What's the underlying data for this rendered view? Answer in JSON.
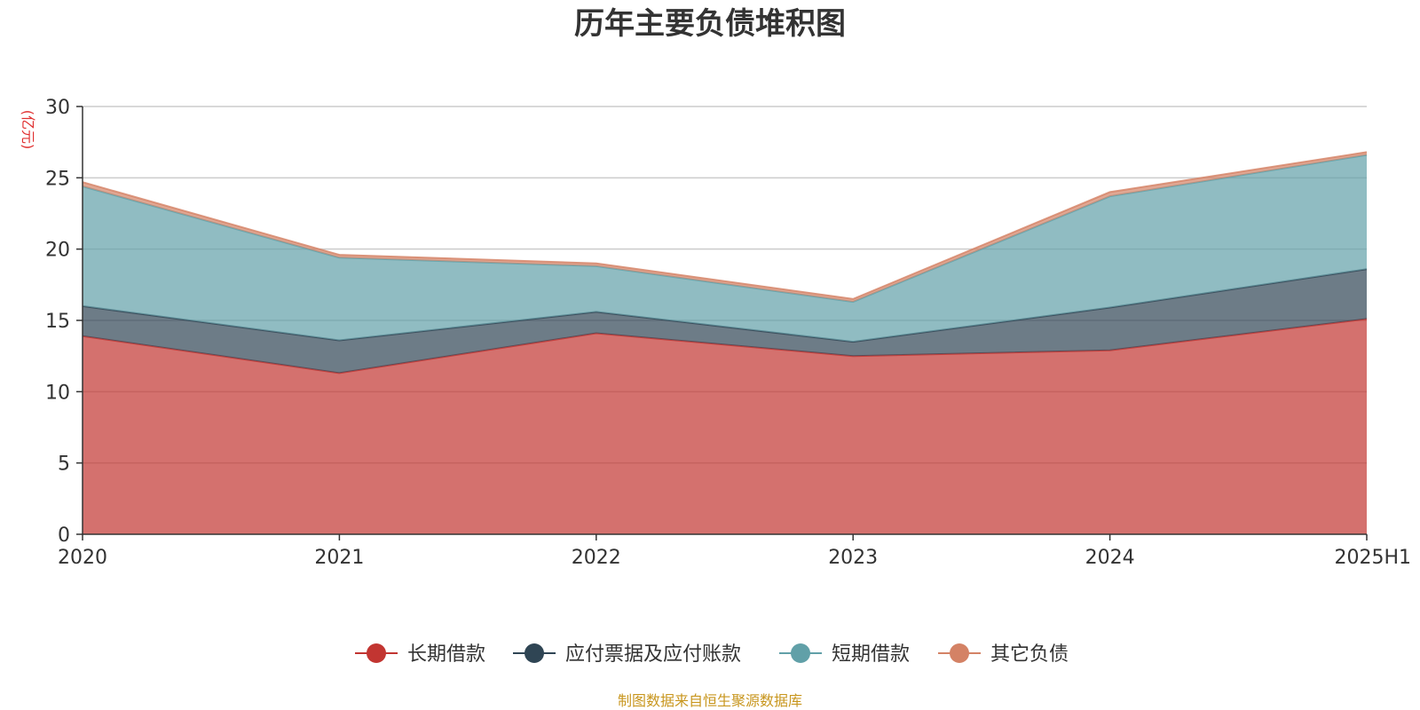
{
  "chart_data": {
    "type": "area",
    "stacked": true,
    "title": "历年主要负债堆积图",
    "unit_label": "(亿元)",
    "categories": [
      "2020",
      "2021",
      "2022",
      "2023",
      "2024",
      "2025H1"
    ],
    "ylim": [
      0,
      30
    ],
    "yticks": [
      0,
      5,
      10,
      15,
      20,
      25,
      30
    ],
    "series": [
      {
        "name": "长期借款",
        "color": "#c23531",
        "values": [
          13.9,
          11.3,
          14.1,
          12.5,
          12.9,
          15.1
        ]
      },
      {
        "name": "应付票据及应付账款",
        "color": "#2f4554",
        "values": [
          2.1,
          2.3,
          1.5,
          1.0,
          3.0,
          3.5
        ]
      },
      {
        "name": "短期借款",
        "color": "#61a0a8",
        "values": [
          8.4,
          5.8,
          3.2,
          2.8,
          7.8,
          8.0
        ]
      },
      {
        "name": "其它负债",
        "color": "#d48265",
        "values": [
          0.3,
          0.2,
          0.2,
          0.2,
          0.3,
          0.2
        ]
      }
    ],
    "grid": true,
    "legend_position": "bottom"
  },
  "footer": {
    "source": "制图数据来自恒生聚源数据库"
  }
}
